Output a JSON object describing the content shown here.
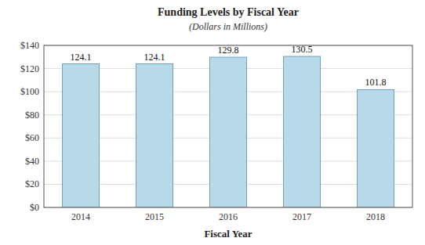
{
  "chart_data": {
    "type": "bar",
    "title": "Funding Levels by Fiscal Year",
    "subtitle": "(Dollars in Millions)",
    "x_label": "Fiscal Year",
    "categories": [
      "2014",
      "2015",
      "2016",
      "2017",
      "2018"
    ],
    "values": [
      124.1,
      124.1,
      129.8,
      130.5,
      101.8
    ],
    "color": "#b8d9e8",
    "ylim": [
      0,
      140
    ],
    "yticks": [
      {
        "value": 0,
        "label": "$0"
      },
      {
        "value": 20,
        "label": "$20"
      },
      {
        "value": 40,
        "label": "$40"
      },
      {
        "value": 60,
        "label": "$60"
      },
      {
        "value": 80,
        "label": "$80"
      },
      {
        "value": 100,
        "label": "$100"
      },
      {
        "value": 120,
        "label": "$120"
      },
      {
        "value": 140,
        "label": "$140"
      }
    ],
    "grid": true,
    "data_labels": true
  }
}
